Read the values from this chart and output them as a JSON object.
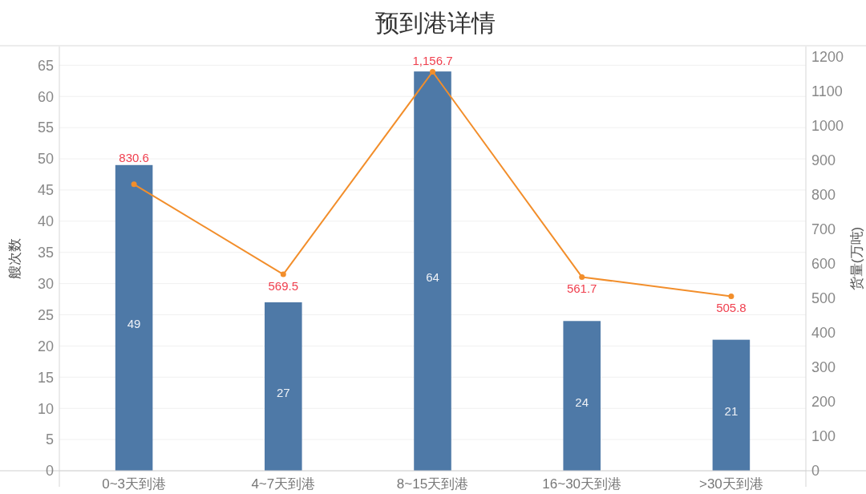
{
  "chart_data": {
    "type": "bar",
    "title": "预到港详情",
    "ylabel": "艘次数",
    "y2label": "货量(万吨)",
    "categories": [
      "0~3天到港",
      "4~7天到港",
      "8~15天到港",
      "16~30天到港",
      ">30天到港"
    ],
    "series": [
      {
        "color": "#4e79a7",
        "values": [
          49,
          27,
          64,
          24,
          21
        ],
        "value_labels": [
          "49",
          "27",
          "64",
          "24",
          "21"
        ]
      },
      {
        "type": "line",
        "axis": "y2",
        "color": "#f28e2b",
        "marker": "circle",
        "values": [
          830.6,
          569.5,
          1156.7,
          561.7,
          505.8
        ],
        "value_labels": [
          "830.6",
          "569.5",
          "1,156.7",
          "561.7",
          "505.8"
        ]
      }
    ],
    "ylim": [
      0,
      68
    ],
    "yticks": [
      0,
      5,
      10,
      15,
      20,
      25,
      30,
      35,
      40,
      45,
      50,
      55,
      60,
      65
    ],
    "y2lim": [
      0,
      1230
    ],
    "y2ticks": [
      0,
      100,
      200,
      300,
      400,
      500,
      600,
      700,
      800,
      900,
      1000,
      1100,
      1200
    ],
    "grid": "y"
  }
}
